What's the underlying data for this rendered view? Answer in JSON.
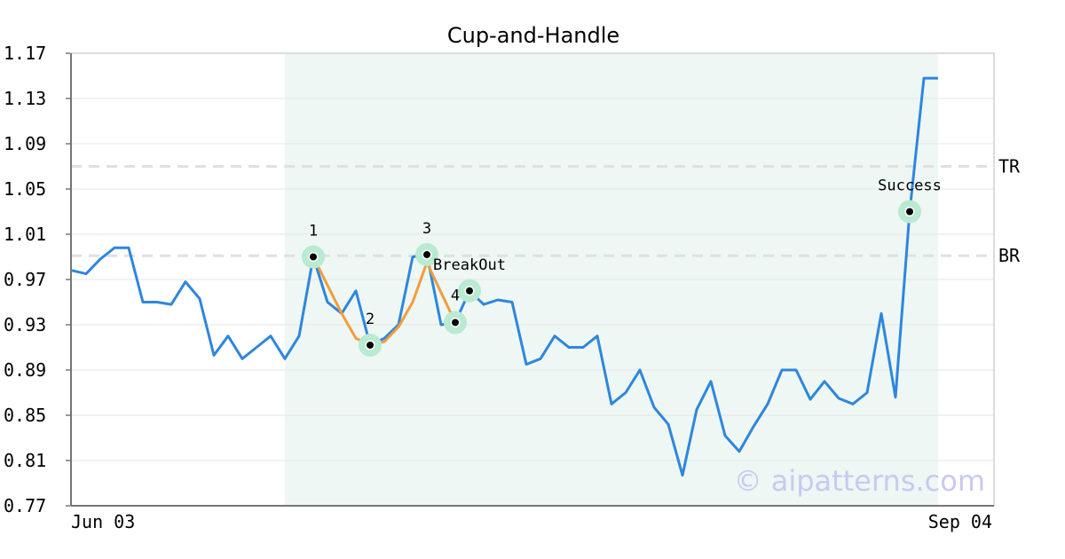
{
  "chart_data": {
    "type": "line",
    "title": "Cup-and-Handle",
    "xlabel": "",
    "ylabel": "",
    "ylim": [
      0.77,
      1.17
    ],
    "yticks": [
      "1.17",
      "1.13",
      "1.09",
      "1.05",
      "1.01",
      "0.97",
      "0.93",
      "0.89",
      "0.85",
      "0.81",
      "0.77"
    ],
    "xticks": [
      "Jun 03",
      "Sep 04"
    ],
    "grid": true,
    "series": [
      {
        "values": [
          0.978,
          0.975,
          0.988,
          0.998,
          0.998,
          0.95,
          0.95,
          0.948,
          0.968,
          0.953,
          0.903,
          0.92,
          0.9,
          0.91,
          0.92,
          0.9,
          0.92,
          0.99,
          0.95,
          0.94,
          0.96,
          0.912,
          0.918,
          0.93,
          0.99,
          0.992,
          0.93,
          0.932,
          0.96,
          0.948,
          0.952,
          0.95,
          0.895,
          0.9,
          0.92,
          0.91,
          0.91,
          0.92,
          0.86,
          0.87,
          0.89,
          0.857,
          0.842,
          0.797,
          0.855,
          0.88,
          0.832,
          0.818,
          0.84,
          0.86,
          0.89,
          0.89,
          0.864,
          0.88,
          0.865,
          0.86,
          0.87,
          0.94,
          0.866,
          1.03,
          1.148,
          1.148
        ]
      }
    ],
    "shaded_region": {
      "from_index": 15,
      "to_index": 61
    },
    "pattern_points": [
      {
        "label": "1",
        "index": 17,
        "value": 0.99
      },
      {
        "label": "2",
        "index": 21,
        "value": 0.912
      },
      {
        "label": "3",
        "index": 25,
        "value": 0.992
      },
      {
        "label": "4",
        "index": 27,
        "value": 0.932
      },
      {
        "label": "BreakOut",
        "index": 28,
        "value": 0.96
      },
      {
        "label": "Success",
        "index": 59,
        "value": 1.03
      }
    ],
    "pattern_line": [
      {
        "index": 17,
        "value": 0.99
      },
      {
        "index": 19,
        "value": 0.94
      },
      {
        "index": 20,
        "value": 0.918
      },
      {
        "index": 21,
        "value": 0.912
      },
      {
        "index": 22,
        "value": 0.915
      },
      {
        "index": 23,
        "value": 0.928
      },
      {
        "index": 24,
        "value": 0.95
      },
      {
        "index": 25,
        "value": 0.985
      },
      {
        "index": 27,
        "value": 0.932
      }
    ],
    "hlines": [
      {
        "label": "TR",
        "value": 1.07
      },
      {
        "label": "BR",
        "value": 0.991
      }
    ],
    "colors": {
      "line": "#2e86de",
      "pattern": "#f39c3c",
      "shade": "#eef7f3",
      "marker_halo": "#b9ead2",
      "hline": "#e0e0e0"
    }
  },
  "watermark": "© aipatterns.com"
}
